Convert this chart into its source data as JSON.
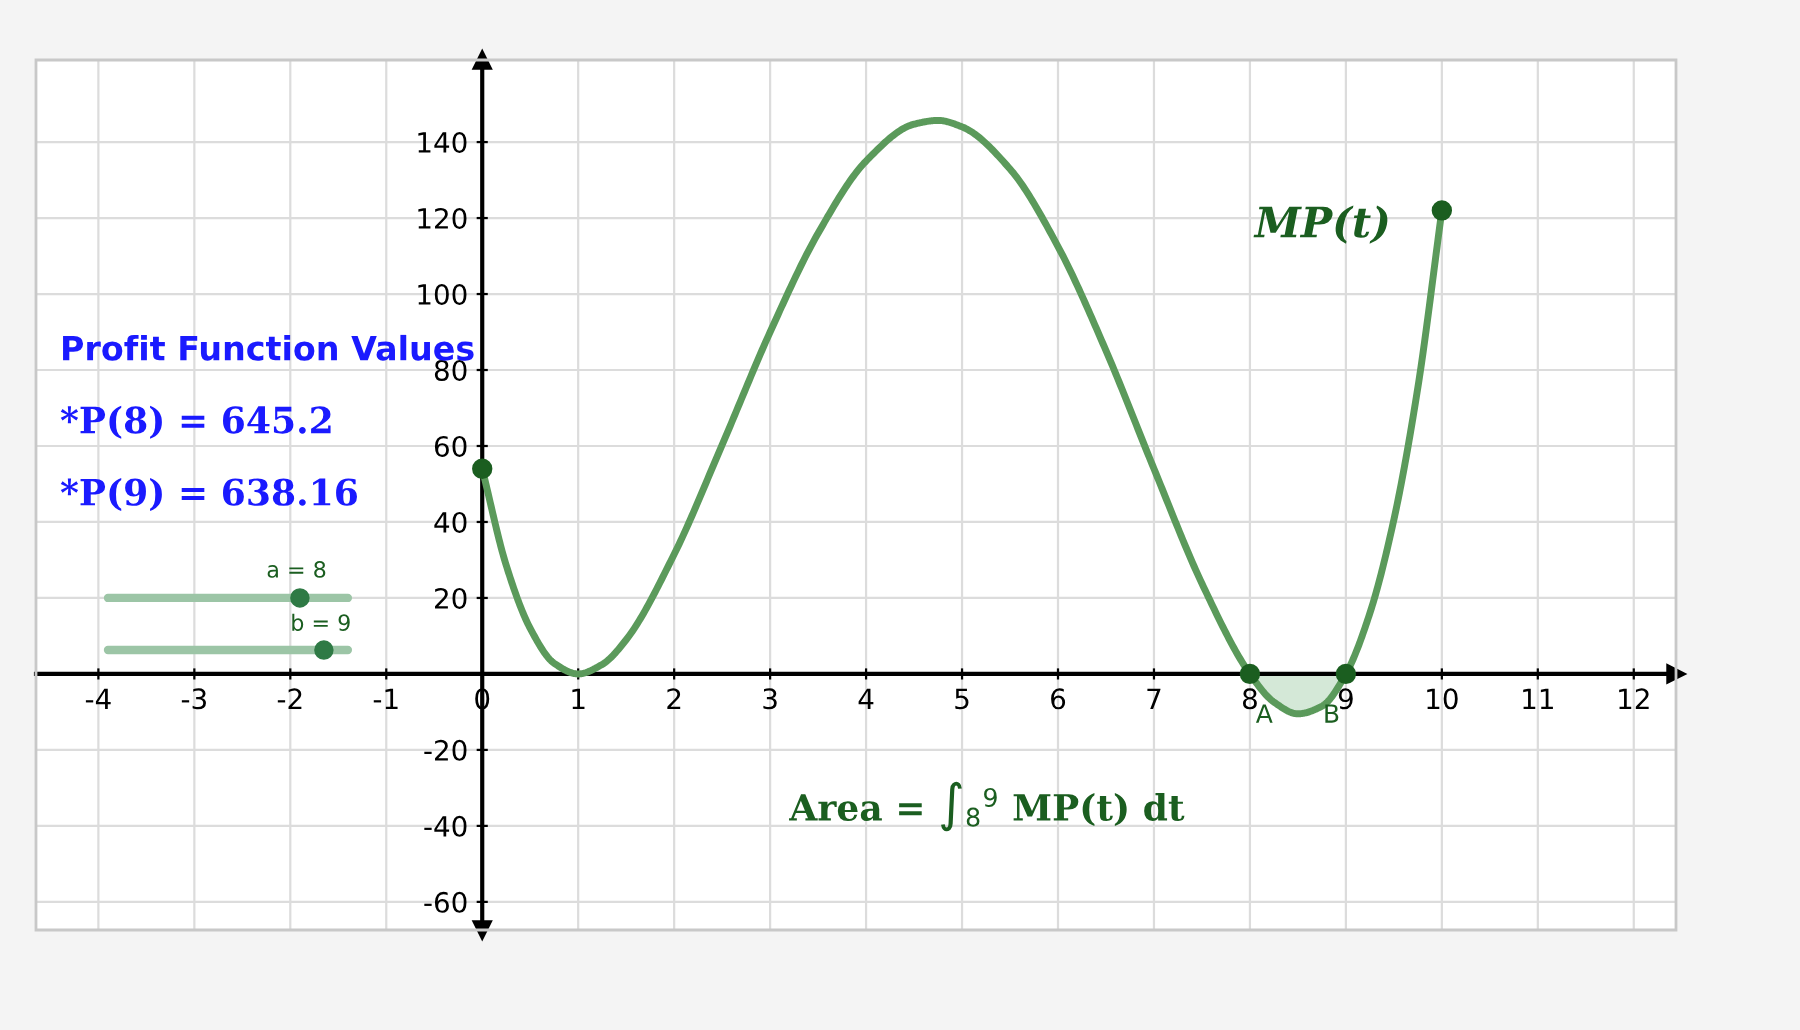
{
  "chart_data": {
    "type": "line",
    "xlim": [
      -4.65,
      12.44
    ],
    "ylim": [
      -67.4,
      161.6
    ],
    "xticks": [
      -4,
      -3,
      -2,
      -1,
      0,
      1,
      2,
      3,
      4,
      5,
      6,
      7,
      8,
      9,
      10,
      11,
      12
    ],
    "yticks": [
      -60,
      -40,
      -20,
      20,
      40,
      60,
      80,
      100,
      120,
      140
    ],
    "grid": true,
    "series": [
      {
        "name": "MP(t)",
        "color": "#5b9a5b",
        "x": [
          0,
          0.25,
          0.5,
          0.75,
          1,
          1.25,
          1.5,
          2,
          2.5,
          3,
          3.5,
          4,
          4.5,
          4.75,
          5,
          5.5,
          6,
          6.5,
          7,
          7.5,
          8,
          8.25,
          8.5,
          8.75,
          9,
          9.25,
          9.5,
          9.75,
          10
        ],
        "values": [
          54,
          28.6,
          12.0,
          2.8,
          0,
          2.5,
          9,
          31.5,
          60.3,
          90,
          116,
          135,
          144.7,
          145.7,
          144,
          132.9,
          112.5,
          85.1,
          54,
          23.8,
          0,
          -7.4,
          -10.5,
          -8.5,
          0,
          16,
          40.6,
          75.4,
          122
        ]
      },
      {
        "type": "area",
        "color": "#cfe5d3",
        "x": [
          8,
          8.25,
          8.5,
          8.75,
          9
        ],
        "values": [
          0,
          -7.4,
          -10.5,
          -8.5,
          0
        ]
      },
      {
        "type": "scatter",
        "color": "#1b5e20",
        "marker": "circle",
        "x": [
          0,
          8,
          9,
          10
        ],
        "values": [
          54,
          0,
          0,
          122
        ]
      }
    ],
    "annotations": [
      "Profit Function Values",
      "*P(8) = 645.2",
      "*P(9) = 638.16",
      "a = 8",
      "b = 9",
      "Area = ∫$_{8}$$^{9}$ MP(t) dt",
      {
        "text": "A",
        "x": 8,
        "y": 0
      },
      {
        "text": "B",
        "x": 9,
        "y": 0
      }
    ]
  }
}
